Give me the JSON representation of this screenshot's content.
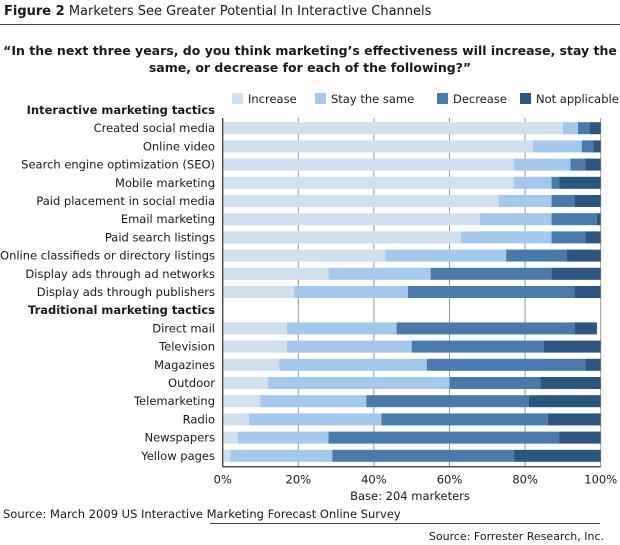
{
  "title": {
    "figure_label": "Figure 2",
    "text": "Marketers See Greater Potential In Interactive Channels"
  },
  "question": "“In the next three years, do you think marketing’s effectiveness will increase, stay the same, or decrease for each of the following?”",
  "base": "Base: 204 marketers",
  "source_survey": "Source: March 2009 US Interactive Marketing Forecast Online Survey",
  "source_credit": "Source: Forrester Research, Inc.",
  "chart_data": {
    "type": "bar",
    "orientation": "horizontal",
    "stacked": "100%",
    "title": "",
    "xlabel": "",
    "ylabel": "",
    "xlim": [
      0,
      100
    ],
    "xticks": [
      "0%",
      "20%",
      "40%",
      "60%",
      "80%",
      "100%"
    ],
    "grid": true,
    "legend_position": "top",
    "groups": [
      {
        "label": "Interactive marketing tactics",
        "categories": [
          "Created social media",
          "Online video",
          "Search engine optimization (SEO)",
          "Mobile marketing",
          "Paid placement in social media",
          "Email marketing",
          "Paid search listings",
          "Online classifieds or directory listings",
          "Display ads through ad networks",
          "Display ads through publishers"
        ]
      },
      {
        "label": "Traditional marketing tactics",
        "categories": [
          "Direct mail",
          "Television",
          "Magazines",
          "Outdoor",
          "Telemarketing",
          "Radio",
          "Newspapers",
          "Yellow pages"
        ]
      }
    ],
    "series": [
      {
        "name": "Increase",
        "color": "#d0e0ef",
        "values": [
          90,
          82,
          77,
          77,
          73,
          68,
          63,
          43,
          28,
          19,
          17,
          17,
          15,
          12,
          10,
          7,
          4,
          2
        ]
      },
      {
        "name": "Stay the same",
        "color": "#a3c8ec",
        "values": [
          4,
          13,
          15,
          10,
          14,
          19,
          24,
          32,
          27,
          30,
          29,
          33,
          39,
          48,
          28,
          35,
          24,
          27
        ]
      },
      {
        "name": "Decrease",
        "color": "#4a7aab",
        "values": [
          3,
          3,
          4,
          2,
          6,
          12,
          9,
          16,
          32,
          44,
          47,
          35,
          42,
          24,
          43,
          44,
          61,
          48
        ]
      },
      {
        "name": "Not applicable",
        "color": "#2c5580",
        "values": [
          3,
          2,
          4,
          11,
          7,
          1,
          4,
          9,
          13,
          7,
          6,
          15,
          4,
          16,
          19,
          14,
          11,
          23
        ]
      }
    ]
  }
}
